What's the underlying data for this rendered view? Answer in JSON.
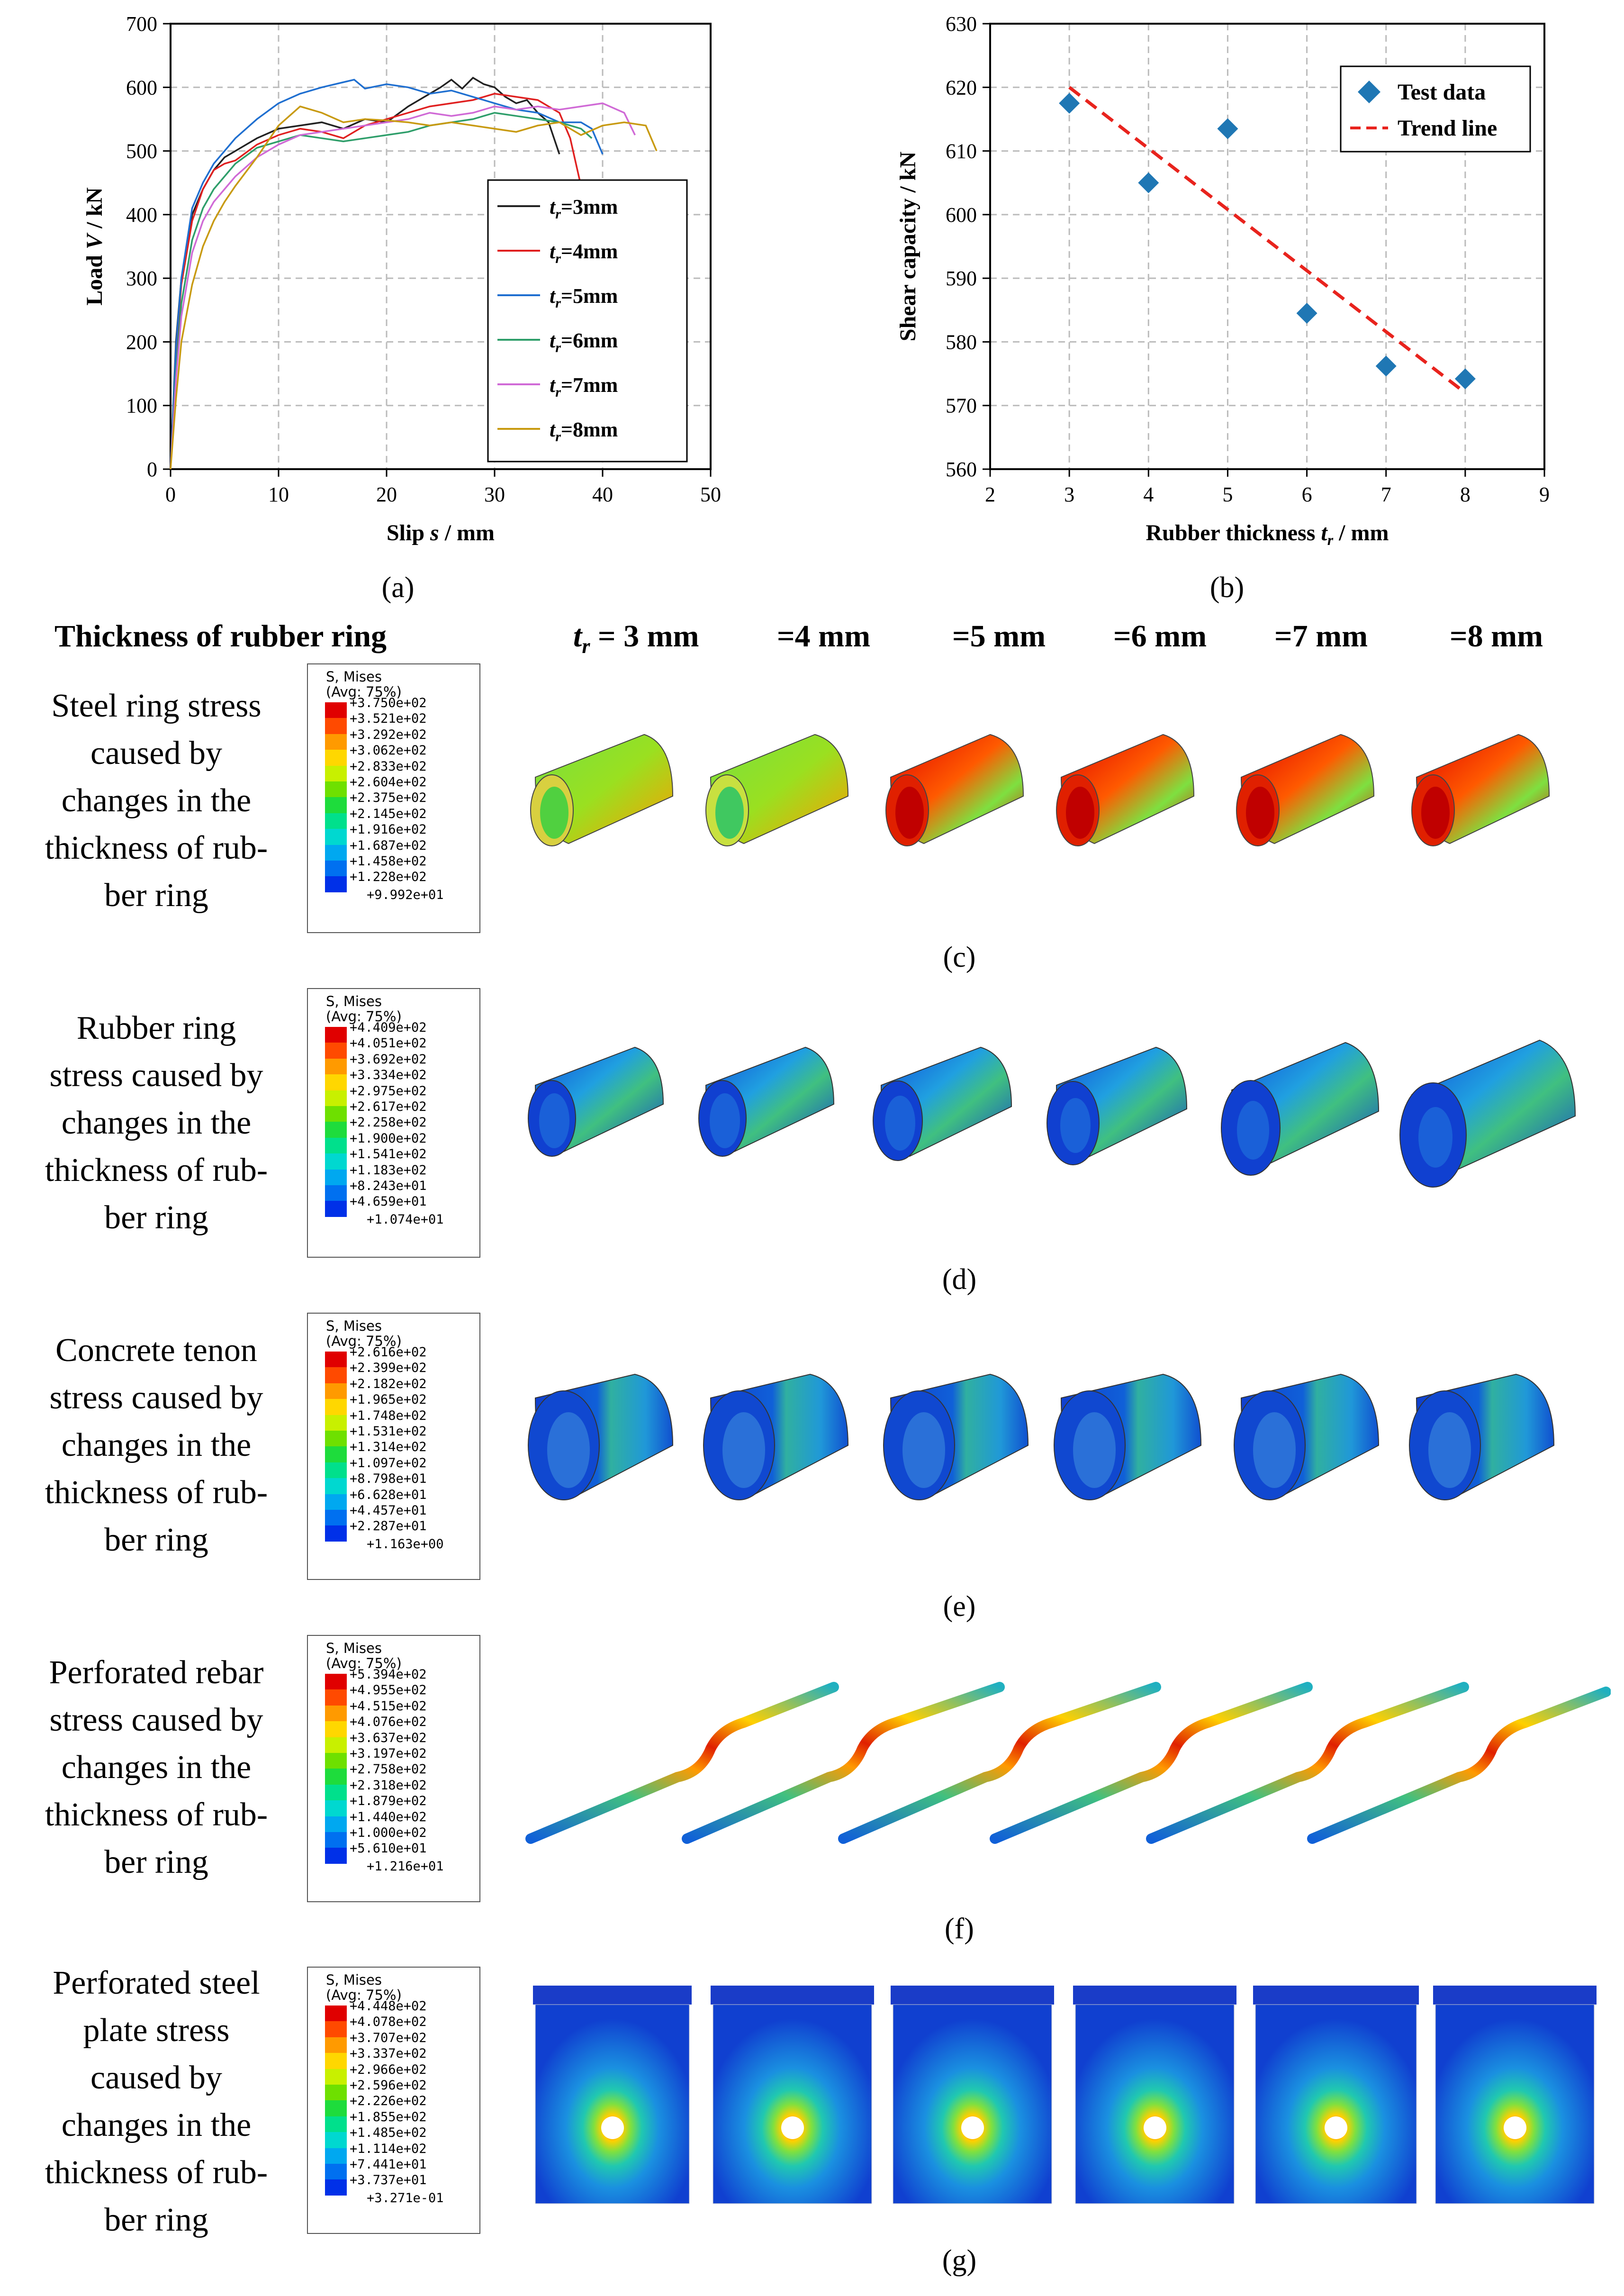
{
  "chart_data": [
    {
      "type": "line",
      "panel": "(a)",
      "xlabel_prefix": "Slip ",
      "xlabel_var": "s",
      "xlabel_unit": " / mm",
      "ylabel_prefix": "Load ",
      "ylabel_var": "V",
      "ylabel_unit": " / kN",
      "xlim": [
        0,
        50
      ],
      "ylim": [
        0,
        700
      ],
      "x_ticks": [
        0,
        10,
        20,
        30,
        40,
        50
      ],
      "y_ticks": [
        0,
        100,
        200,
        300,
        400,
        500,
        600,
        700
      ],
      "grid": true,
      "legend_position": "bottom-right",
      "series": [
        {
          "name": "tr=3mm",
          "label_sub": "r",
          "label_rest": "=3mm",
          "color": "#222222",
          "x": [
            0,
            0.5,
            1,
            2,
            3,
            4,
            5,
            6,
            8,
            10,
            12,
            14,
            16,
            18,
            20,
            22,
            24,
            25,
            26,
            27,
            28,
            29,
            30,
            31,
            32,
            33,
            34,
            35,
            36
          ],
          "y": [
            0,
            200,
            300,
            400,
            440,
            470,
            490,
            500,
            520,
            535,
            540,
            545,
            535,
            550,
            545,
            570,
            590,
            600,
            612,
            598,
            615,
            605,
            600,
            585,
            575,
            580,
            560,
            545,
            495
          ]
        },
        {
          "name": "tr=4mm",
          "label_sub": "r",
          "label_rest": "=4mm",
          "color": "#e02020",
          "x": [
            0,
            0.5,
            1,
            2,
            3,
            4,
            5,
            6,
            8,
            10,
            12,
            14,
            16,
            18,
            20,
            22,
            24,
            26,
            28,
            30,
            32,
            34,
            35,
            36,
            37,
            38
          ],
          "y": [
            0,
            180,
            290,
            390,
            440,
            470,
            480,
            485,
            510,
            525,
            535,
            530,
            520,
            540,
            550,
            560,
            570,
            575,
            580,
            590,
            585,
            580,
            570,
            560,
            520,
            445
          ]
        },
        {
          "name": "tr=5mm",
          "label_sub": "r",
          "label_rest": "=5mm",
          "color": "#1f6fd0",
          "x": [
            0,
            0.5,
            1,
            2,
            3,
            4,
            5,
            6,
            8,
            10,
            12,
            14,
            16,
            17,
            18,
            20,
            22,
            24,
            26,
            28,
            30,
            32,
            34,
            36,
            38,
            39,
            40
          ],
          "y": [
            0,
            190,
            300,
            410,
            450,
            480,
            500,
            520,
            550,
            575,
            590,
            600,
            608,
            612,
            598,
            605,
            600,
            590,
            595,
            585,
            575,
            565,
            560,
            545,
            545,
            535,
            495
          ]
        },
        {
          "name": "tr=6mm",
          "label_sub": "r",
          "label_rest": "=6mm",
          "color": "#2e9e6a",
          "x": [
            0,
            0.5,
            1,
            2,
            3,
            4,
            5,
            6,
            8,
            10,
            12,
            14,
            16,
            18,
            20,
            22,
            24,
            26,
            28,
            30,
            32,
            34,
            36,
            38,
            39
          ],
          "y": [
            0,
            150,
            260,
            360,
            410,
            440,
            460,
            480,
            505,
            515,
            525,
            520,
            515,
            520,
            525,
            530,
            540,
            545,
            550,
            560,
            555,
            550,
            545,
            535,
            520
          ]
        },
        {
          "name": "tr=7mm",
          "label_sub": "r",
          "label_rest": "=7mm",
          "color": "#d06ad6",
          "x": [
            0,
            0.5,
            1,
            2,
            3,
            4,
            5,
            6,
            8,
            10,
            12,
            14,
            16,
            18,
            20,
            22,
            24,
            26,
            28,
            30,
            32,
            34,
            36,
            38,
            40,
            42,
            43
          ],
          "y": [
            0,
            140,
            240,
            340,
            390,
            420,
            440,
            460,
            490,
            510,
            525,
            530,
            535,
            540,
            545,
            550,
            560,
            555,
            560,
            570,
            565,
            570,
            565,
            570,
            575,
            560,
            525
          ]
        },
        {
          "name": "tr=8mm",
          "label_sub": "r",
          "label_rest": "=8mm",
          "color": "#c89a10",
          "x": [
            0,
            0.5,
            1,
            2,
            3,
            4,
            5,
            6,
            8,
            10,
            12,
            14,
            16,
            18,
            20,
            22,
            24,
            26,
            28,
            30,
            32,
            34,
            36,
            38,
            40,
            42,
            44,
            45
          ],
          "y": [
            0,
            110,
            200,
            290,
            350,
            390,
            420,
            445,
            490,
            540,
            570,
            560,
            545,
            550,
            548,
            545,
            540,
            545,
            540,
            535,
            530,
            540,
            545,
            525,
            540,
            545,
            540,
            500
          ]
        }
      ]
    },
    {
      "type": "scatter",
      "panel": "(b)",
      "xlabel_prefix": "Rubber thickness ",
      "xlabel_var": "t",
      "xlabel_sub": "r",
      "xlabel_unit": " / mm",
      "ylabel": "Shear capacity / kN",
      "xlim": [
        2,
        9
      ],
      "ylim": [
        560,
        630
      ],
      "x_ticks": [
        2,
        3,
        4,
        5,
        6,
        7,
        8,
        9
      ],
      "y_ticks": [
        560,
        570,
        580,
        590,
        600,
        610,
        620,
        630
      ],
      "grid": true,
      "legend_position": "top-right",
      "series": [
        {
          "name": "Test data",
          "marker": "diamond",
          "color": "#1f77b4",
          "x": [
            3,
            4,
            5,
            6,
            7,
            8
          ],
          "y": [
            617.5,
            605,
            613.5,
            584.5,
            576.2,
            574.2
          ]
        },
        {
          "name": "Trend line",
          "style": "dashed",
          "color": "#e8231d",
          "x": [
            3,
            8
          ],
          "y": [
            620,
            572
          ]
        }
      ]
    }
  ],
  "captions": {
    "a": "(a)",
    "b": "(b)",
    "c": "(c)",
    "d": "(d)",
    "e": "(e)",
    "f": "(f)",
    "g": "(g)"
  },
  "header": {
    "left": "Thickness of rubber ring",
    "t_label": "t",
    "t_sub": "r",
    "t_first": " = 3 mm",
    "others": [
      "=4 mm",
      "=5 mm",
      "=6 mm",
      "=7 mm",
      "=8 mm"
    ]
  },
  "rows": [
    {
      "label_lines": [
        "Steel ring stress",
        "caused by",
        "changes in the",
        "thickness of rub-",
        "ber ring"
      ],
      "legend": {
        "title1": "S, Mises",
        "title2": "(Avg: 75%)",
        "values": [
          "+3.750e+02",
          "+3.521e+02",
          "+3.292e+02",
          "+3.062e+02",
          "+2.833e+02",
          "+2.604e+02",
          "+2.375e+02",
          "+2.145e+02",
          "+1.916e+02",
          "+1.687e+02",
          "+1.458e+02",
          "+1.228e+02"
        ],
        "last": "+9.992e+01"
      }
    },
    {
      "label_lines": [
        "Rubber ring",
        "stress caused by",
        "changes in the",
        "thickness of rub-",
        "ber ring"
      ],
      "legend": {
        "title1": "S, Mises",
        "title2": "(Avg: 75%)",
        "values": [
          "+4.409e+02",
          "+4.051e+02",
          "+3.692e+02",
          "+3.334e+02",
          "+2.975e+02",
          "+2.617e+02",
          "+2.258e+02",
          "+1.900e+02",
          "+1.541e+02",
          "+1.183e+02",
          "+8.243e+01",
          "+4.659e+01"
        ],
        "last": "+1.074e+01"
      }
    },
    {
      "label_lines": [
        "Concrete tenon",
        "stress caused by",
        "changes in the",
        "thickness of rub-",
        "ber ring"
      ],
      "legend": {
        "title1": "S, Mises",
        "title2": "(Avg: 75%)",
        "values": [
          "+2.616e+02",
          "+2.399e+02",
          "+2.182e+02",
          "+1.965e+02",
          "+1.748e+02",
          "+1.531e+02",
          "+1.314e+02",
          "+1.097e+02",
          "+8.798e+01",
          "+6.628e+01",
          "+4.457e+01",
          "+2.287e+01"
        ],
        "last": "+1.163e+00"
      }
    },
    {
      "label_lines": [
        "Perforated rebar",
        "stress caused by",
        "changes in the",
        "thickness of rub-",
        "ber ring"
      ],
      "legend": {
        "title1": "S, Mises",
        "title2": "(Avg: 75%)",
        "values": [
          "+5.394e+02",
          "+4.955e+02",
          "+4.515e+02",
          "+4.076e+02",
          "+3.637e+02",
          "+3.197e+02",
          "+2.758e+02",
          "+2.318e+02",
          "+1.879e+02",
          "+1.440e+02",
          "+1.000e+02",
          "+5.610e+01"
        ],
        "last": "+1.216e+01"
      }
    },
    {
      "label_lines": [
        "Perforated steel",
        "plate stress",
        "caused by",
        "changes in the",
        "thickness of rub-",
        "ber ring"
      ],
      "legend": {
        "title1": "S, Mises",
        "title2": "(Avg: 75%)",
        "values": [
          "+4.448e+02",
          "+4.078e+02",
          "+3.707e+02",
          "+3.337e+02",
          "+2.966e+02",
          "+2.596e+02",
          "+2.226e+02",
          "+1.855e+02",
          "+1.485e+02",
          "+1.114e+02",
          "+7.441e+01",
          "+3.737e+01"
        ],
        "last": "+3.271e-01"
      }
    }
  ],
  "colors": {
    "contour": [
      "#e00000",
      "#ff4a00",
      "#ff9a00",
      "#ffd700",
      "#c8f000",
      "#6ee000",
      "#1edc3c",
      "#00e08c",
      "#00d8d0",
      "#00a8f0",
      "#0070f0",
      "#0030e8"
    ],
    "dark_blue": "#1030c8"
  }
}
